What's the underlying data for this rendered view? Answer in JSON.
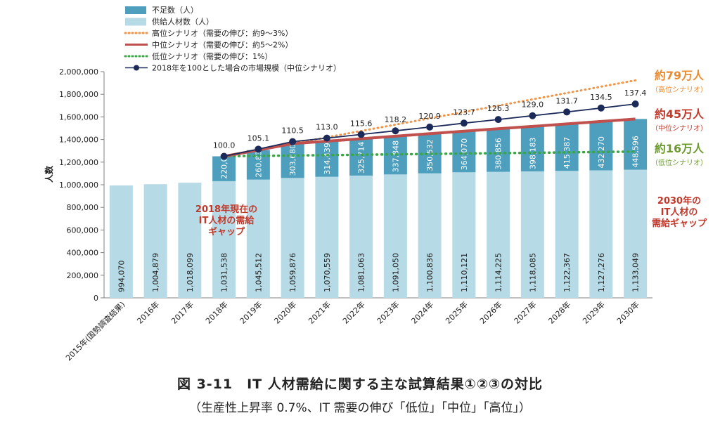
{
  "caption": {
    "title": "図 3-11　IT 人材需給に関する主な試算結果①②③の対比",
    "subtitle": "（生産性上昇率 0.7%、IT 需要の伸び「低位」「中位」「高位」）"
  },
  "chart_data": {
    "type": "bar",
    "stacked": true,
    "ylabel": "人数",
    "ylim": [
      0,
      2000000
    ],
    "yticks": [
      0,
      200000,
      400000,
      600000,
      800000,
      1000000,
      1200000,
      1400000,
      1600000,
      1800000,
      2000000
    ],
    "ytick_labels": [
      "0",
      "200,000",
      "400,000",
      "600,000",
      "800,000",
      "1,000,000",
      "1,200,000",
      "1,400,000",
      "1,600,000",
      "1,800,000",
      "2,000,000"
    ],
    "categories": [
      "2015年(国勢調査結果)",
      "2016年",
      "2017年",
      "2018年",
      "2019年",
      "2020年",
      "2021年",
      "2022年",
      "2023年",
      "2024年",
      "2025年",
      "2026年",
      "2027年",
      "2028年",
      "2029年",
      "2030年"
    ],
    "series": [
      {
        "name": "供給人材数（人）",
        "color": "#b7dbe6",
        "values": [
          994070,
          1004879,
          1018099,
          1031538,
          1045512,
          1059876,
          1070559,
          1081063,
          1091050,
          1100836,
          1110121,
          1114225,
          1118085,
          1122367,
          1127276,
          1133049
        ],
        "labels": [
          "994,070",
          "1,004,879",
          "1,018,099",
          "1,031,538",
          "1,045,512",
          "1,059,876",
          "1,070,559",
          "1,081,063",
          "1,091,050",
          "1,100,836",
          "1,110,121",
          "1,114,225",
          "1,118,085",
          "1,122,367",
          "1,127,276",
          "1,133,049"
        ]
      },
      {
        "name": "不足数（人）",
        "color": "#4e9fbe",
        "values": [
          null,
          null,
          null,
          220000,
          260835,
          303680,
          314439,
          325714,
          337848,
          350532,
          364070,
          380856,
          398183,
          415387,
          432270,
          448596
        ],
        "labels": [
          "",
          "",
          "",
          "220,000",
          "260,835",
          "303,680",
          "314,439",
          "325,714",
          "337,848",
          "350,532",
          "364,070",
          "380,856",
          "398,183",
          "415,387",
          "432,270",
          "448,596"
        ]
      }
    ],
    "lines": [
      {
        "name": "高位シナリオ（需要の伸び：約9～3%）",
        "color": "#f0954a",
        "style": "dotted",
        "values": [
          null,
          null,
          null,
          1251538,
          null,
          null,
          null,
          null,
          null,
          null,
          null,
          null,
          null,
          null,
          null,
          1923049
        ]
      },
      {
        "name": "中位シナリオ（需要の伸び：約5～2%）",
        "color": "#c0504d",
        "style": "solid",
        "values": [
          null,
          null,
          null,
          1251538,
          1306347,
          1363556,
          1384998,
          1406777,
          1428898,
          1451368,
          1474191,
          1495081,
          1516268,
          1537754,
          1559546,
          1581645
        ]
      },
      {
        "name": "低位シナリオ（需要の伸び：1%）",
        "color": "#3aa645",
        "style": "dotted",
        "values": [
          null,
          null,
          null,
          1251538,
          null,
          null,
          null,
          null,
          null,
          null,
          null,
          null,
          null,
          null,
          null,
          1293049
        ]
      },
      {
        "name": "2018年を100とした場合の市場規模（中位シナリオ）",
        "color": "#1c2a5a",
        "style": "solid-marker",
        "values": [
          null,
          null,
          null,
          100.0,
          105.1,
          110.5,
          113.0,
          115.6,
          118.2,
          120.9,
          123.7,
          126.3,
          129.0,
          131.7,
          134.5,
          137.4
        ],
        "labels": [
          "",
          "",
          "",
          "100.0",
          "105.1",
          "110.5",
          "113.0",
          "115.6",
          "118.2",
          "120.9",
          "123.7",
          "126.3",
          "129.0",
          "131.7",
          "134.5",
          "137.4"
        ]
      }
    ],
    "legend_position": "top-left",
    "grid": false,
    "annotations": {
      "gap_2018": [
        "2018年現在の",
        "IT人材の需給",
        "ギャップ"
      ],
      "gap_2030": [
        "2030年の",
        "IT人材の",
        "需給ギャップ"
      ],
      "high_main": "約79万人",
      "high_sub": "（高位シナリオ）",
      "mid_main": "約45万人",
      "mid_sub": "（中位シナリオ）",
      "low_main": "約16万人",
      "low_sub": "（低位シナリオ）"
    },
    "annotation_colors": {
      "gap": "#c0392b",
      "high": "#e98a2f",
      "mid": "#c0392b",
      "low": "#6b9a2e"
    }
  }
}
